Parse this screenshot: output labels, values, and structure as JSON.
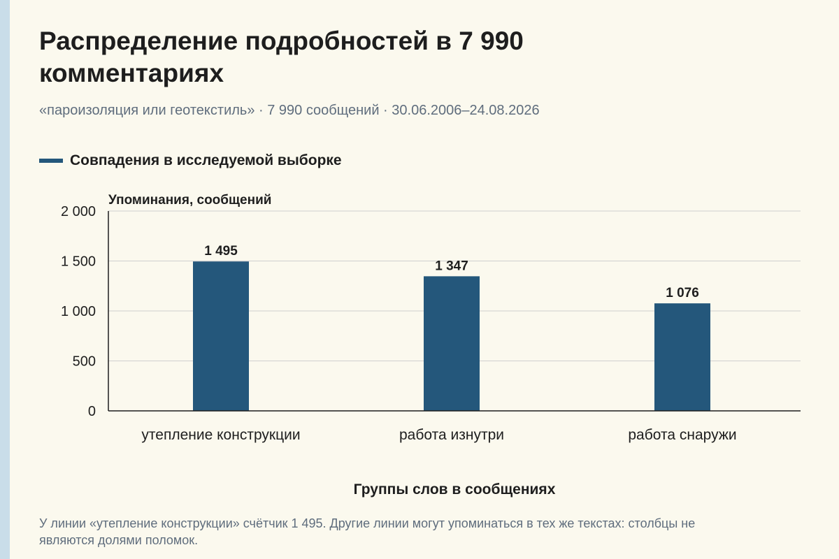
{
  "title": "Распределение подробностей в 7 990 комментариях",
  "subtitle": "«пароизоляция или геотекстиль» · 7 990 сообщений · 30.06.2006–24.08.2026",
  "footnote": "У линии «утепление конструкции» счётчик 1 495. Другие линии могут упоминаться в тех же текстах: столбцы не являются долями поломок.",
  "chart_data": {
    "type": "bar",
    "categories": [
      "утепление конструкции",
      "работа изнутри",
      "работа снаружи"
    ],
    "series": [
      {
        "name": "Совпадения в исследуемой выборке",
        "values": [
          1495,
          1347,
          1076
        ],
        "value_labels": [
          "1 495",
          "1 347",
          "1 076"
        ],
        "color": "#24577b"
      }
    ],
    "ylabel": "Упоминания, сообщений",
    "xlabel": "Группы слов в сообщениях",
    "ylim": [
      0,
      2000
    ],
    "yticks": [
      0,
      500,
      1000,
      1500,
      2000
    ],
    "ytick_labels": [
      "0",
      "500",
      "1 000",
      "1 500",
      "2 000"
    ],
    "grid": true,
    "legend_position": "top-left"
  }
}
